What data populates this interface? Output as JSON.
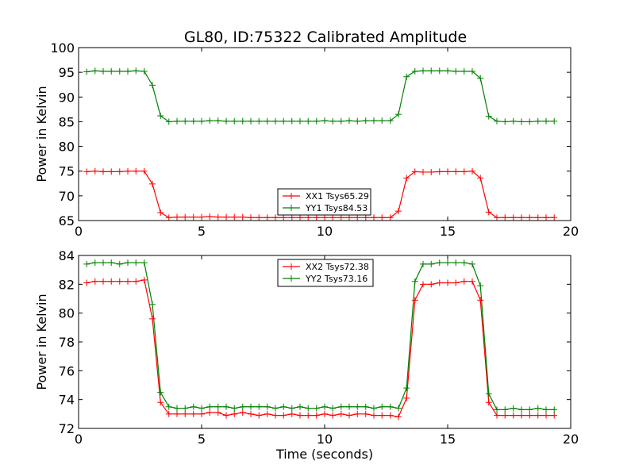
{
  "title": "GL80, ID:75322 Calibrated Amplitude",
  "chart_data": [
    {
      "type": "line",
      "title": "GL80, ID:75322 Calibrated Amplitude",
      "xlabel": "",
      "ylabel": "Power in Kelvin",
      "xlim": [
        0,
        20
      ],
      "ylim": [
        65,
        100
      ],
      "xticks": [
        0,
        5,
        10,
        15,
        20
      ],
      "yticks": [
        65,
        70,
        75,
        80,
        85,
        90,
        95,
        100
      ],
      "legend_position": "lower-center",
      "x": [
        0.33,
        0.67,
        1.0,
        1.33,
        1.67,
        2.0,
        2.33,
        2.67,
        3.0,
        3.33,
        3.67,
        4.0,
        4.33,
        4.67,
        5.0,
        5.33,
        5.67,
        6.0,
        6.33,
        6.67,
        7.0,
        7.33,
        7.67,
        8.0,
        8.33,
        8.67,
        9.0,
        9.33,
        9.67,
        10.0,
        10.33,
        10.67,
        11.0,
        11.33,
        11.67,
        12.0,
        12.33,
        12.67,
        13.0,
        13.33,
        13.67,
        14.0,
        14.33,
        14.67,
        15.0,
        15.33,
        15.67,
        16.0,
        16.33,
        16.67,
        17.0,
        17.33,
        17.67,
        18.0,
        18.33,
        18.67,
        19.0,
        19.33
      ],
      "series": [
        {
          "name": "XX1 Tsys65.29",
          "color": "#ff0000",
          "values": [
            74.9,
            75.0,
            74.9,
            74.9,
            74.9,
            75.0,
            75.0,
            75.0,
            72.4,
            66.6,
            65.6,
            65.7,
            65.7,
            65.7,
            65.7,
            65.8,
            65.7,
            65.7,
            65.7,
            65.7,
            65.6,
            65.6,
            65.6,
            65.6,
            65.6,
            65.6,
            65.6,
            65.6,
            65.6,
            65.6,
            65.6,
            65.6,
            65.6,
            65.6,
            65.6,
            65.6,
            65.6,
            65.6,
            66.9,
            73.6,
            74.9,
            74.8,
            74.8,
            74.9,
            74.9,
            74.9,
            74.9,
            75.0,
            73.6,
            66.7,
            65.6,
            65.6,
            65.6,
            65.6,
            65.6,
            65.6,
            65.6,
            65.6
          ]
        },
        {
          "name": "YY1 Tsys84.53",
          "color": "#008000",
          "values": [
            95.1,
            95.3,
            95.2,
            95.2,
            95.2,
            95.2,
            95.3,
            95.2,
            92.4,
            86.2,
            85.0,
            85.1,
            85.1,
            85.1,
            85.1,
            85.2,
            85.2,
            85.1,
            85.1,
            85.1,
            85.1,
            85.1,
            85.1,
            85.1,
            85.1,
            85.1,
            85.1,
            85.1,
            85.1,
            85.2,
            85.1,
            85.1,
            85.2,
            85.1,
            85.2,
            85.2,
            85.2,
            85.2,
            86.5,
            94.1,
            95.2,
            95.3,
            95.3,
            95.3,
            95.3,
            95.2,
            95.2,
            95.2,
            93.8,
            86.1,
            85.1,
            85.0,
            85.1,
            85.0,
            85.0,
            85.1,
            85.1,
            85.1
          ]
        }
      ]
    },
    {
      "type": "line",
      "title": "",
      "xlabel": "Time (seconds)",
      "ylabel": "Power in Kelvin",
      "xlim": [
        0,
        20
      ],
      "ylim": [
        72,
        84
      ],
      "xticks": [
        0,
        5,
        10,
        15,
        20
      ],
      "yticks": [
        72,
        74,
        76,
        78,
        80,
        82,
        84
      ],
      "legend_position": "upper-center",
      "x": [
        0.33,
        0.67,
        1.0,
        1.33,
        1.67,
        2.0,
        2.33,
        2.67,
        3.0,
        3.33,
        3.67,
        4.0,
        4.33,
        4.67,
        5.0,
        5.33,
        5.67,
        6.0,
        6.33,
        6.67,
        7.0,
        7.33,
        7.67,
        8.0,
        8.33,
        8.67,
        9.0,
        9.33,
        9.67,
        10.0,
        10.33,
        10.67,
        11.0,
        11.33,
        11.67,
        12.0,
        12.33,
        12.67,
        13.0,
        13.33,
        13.67,
        14.0,
        14.33,
        14.67,
        15.0,
        15.33,
        15.67,
        16.0,
        16.33,
        16.67,
        17.0,
        17.33,
        17.67,
        18.0,
        18.33,
        18.67,
        19.0,
        19.33
      ],
      "series": [
        {
          "name": "XX2 Tsys72.38",
          "color": "#ff0000",
          "values": [
            82.1,
            82.2,
            82.2,
            82.2,
            82.2,
            82.2,
            82.2,
            82.3,
            79.6,
            73.8,
            73.0,
            73.0,
            73.0,
            73.0,
            73.0,
            73.1,
            73.1,
            72.9,
            73.0,
            73.1,
            73.0,
            72.9,
            73.0,
            72.9,
            72.9,
            73.0,
            72.9,
            72.9,
            72.9,
            73.0,
            72.9,
            73.0,
            72.9,
            73.0,
            73.0,
            72.9,
            72.9,
            72.9,
            72.8,
            74.1,
            80.9,
            82.0,
            82.0,
            82.1,
            82.1,
            82.1,
            82.2,
            82.2,
            80.9,
            73.8,
            72.9,
            72.9,
            72.9,
            72.9,
            72.9,
            72.9,
            72.9,
            72.9
          ]
        },
        {
          "name": "YY2 Tsys73.16",
          "color": "#008000",
          "values": [
            83.4,
            83.5,
            83.5,
            83.5,
            83.4,
            83.5,
            83.5,
            83.5,
            80.6,
            74.5,
            73.5,
            73.4,
            73.4,
            73.5,
            73.4,
            73.5,
            73.5,
            73.5,
            73.4,
            73.5,
            73.5,
            73.5,
            73.5,
            73.4,
            73.5,
            73.4,
            73.5,
            73.4,
            73.4,
            73.5,
            73.4,
            73.5,
            73.5,
            73.5,
            73.5,
            73.4,
            73.5,
            73.5,
            73.4,
            74.8,
            82.2,
            83.4,
            83.4,
            83.5,
            83.5,
            83.5,
            83.5,
            83.4,
            81.9,
            74.4,
            73.3,
            73.3,
            73.4,
            73.3,
            73.3,
            73.4,
            73.3,
            73.3
          ]
        }
      ]
    }
  ]
}
